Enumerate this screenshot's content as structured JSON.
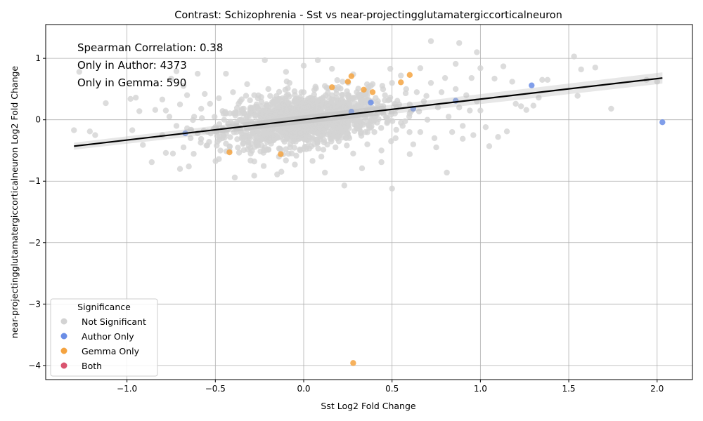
{
  "chart_data": {
    "type": "scatter",
    "title": "Contrast: Schizophrenia - Sst vs near-projectingglutamatergiccorticalneuron",
    "xlabel": "Sst Log2 Fold Change",
    "ylabel": "near-projectingglutamatergiccorticalneuron Log2 Fold Change",
    "xlim": [
      -1.46,
      2.2
    ],
    "ylim": [
      -4.23,
      1.55
    ],
    "xticks": [
      -1.0,
      -0.5,
      0.0,
      0.5,
      1.0,
      1.5,
      2.0
    ],
    "xtick_labels": [
      "−1.0",
      "−0.5",
      "0.0",
      "0.5",
      "1.0",
      "1.5",
      "2.0"
    ],
    "yticks": [
      -4,
      -3,
      -2,
      -1,
      0,
      1
    ],
    "ytick_labels": [
      "−4",
      "−3",
      "−2",
      "−1",
      "0",
      "1"
    ],
    "grid": true,
    "annotations": [
      "Spearman Correlation: 0.38",
      "Only in Author: 4373",
      "Only in Gemma: 590"
    ],
    "legend": {
      "title": "Significance",
      "placement": "lower-left",
      "entries": [
        {
          "label": "Not Significant",
          "color": "#d3d3d3"
        },
        {
          "label": "Author Only",
          "color": "#6a8de6"
        },
        {
          "label": "Gemma Only",
          "color": "#f4a340"
        },
        {
          "label": "Both",
          "color": "#d9546f"
        }
      ]
    },
    "regression_line": {
      "x": [
        -1.3,
        2.03
      ],
      "y": [
        -0.43,
        0.68
      ],
      "color": "#000000"
    },
    "series": [
      {
        "name": "Not Significant",
        "color": "#d3d3d3",
        "points": [
          [
            -1.3,
            -0.17
          ],
          [
            -1.27,
            0.78
          ],
          [
            -1.21,
            -0.19
          ],
          [
            -1.18,
            -0.25
          ],
          [
            -1.12,
            0.27
          ],
          [
            -0.98,
            0.34
          ],
          [
            -0.97,
            -0.17
          ],
          [
            -0.95,
            0.36
          ],
          [
            -0.93,
            0.14
          ],
          [
            -0.91,
            -0.41
          ],
          [
            -0.86,
            -0.69
          ],
          [
            -0.84,
            0.16
          ],
          [
            -0.8,
            0.33
          ],
          [
            -0.78,
            -0.54
          ],
          [
            -0.75,
            0.67
          ],
          [
            -0.72,
            0.79
          ],
          [
            -0.7,
            -0.8
          ],
          [
            -0.65,
            -0.76
          ],
          [
            -0.6,
            0.75
          ],
          [
            -0.56,
            0.42
          ],
          [
            -0.48,
            -0.64
          ],
          [
            -0.44,
            0.75
          ],
          [
            -0.39,
            -0.94
          ],
          [
            -0.32,
            0.58
          ],
          [
            -0.28,
            -0.91
          ],
          [
            -0.22,
            0.97
          ],
          [
            -0.15,
            -0.89
          ],
          [
            -0.1,
            0.78
          ],
          [
            -0.05,
            -0.73
          ],
          [
            0.0,
            0.88
          ],
          [
            0.05,
            -0.67
          ],
          [
            0.08,
            0.97
          ],
          [
            0.12,
            -0.86
          ],
          [
            0.16,
            0.83
          ],
          [
            0.23,
            -1.07
          ],
          [
            0.28,
            0.74
          ],
          [
            0.33,
            -0.79
          ],
          [
            0.39,
            0.58
          ],
          [
            0.44,
            -0.69
          ],
          [
            0.49,
            0.83
          ],
          [
            0.5,
            -1.12
          ],
          [
            0.55,
            0.72
          ],
          [
            0.6,
            -0.56
          ],
          [
            0.66,
            0.84
          ],
          [
            0.72,
            1.28
          ],
          [
            0.75,
            -0.45
          ],
          [
            0.8,
            0.68
          ],
          [
            0.81,
            -0.86
          ],
          [
            0.86,
            0.91
          ],
          [
            0.88,
            1.25
          ],
          [
            0.9,
            -0.31
          ],
          [
            0.95,
            0.68
          ],
          [
            0.98,
            1.1
          ],
          [
            1.0,
            0.84
          ],
          [
            1.03,
            -0.12
          ],
          [
            1.05,
            -0.43
          ],
          [
            1.08,
            0.67
          ],
          [
            1.1,
            -0.28
          ],
          [
            1.13,
            0.87
          ],
          [
            1.15,
            -0.19
          ],
          [
            1.18,
            0.62
          ],
          [
            1.2,
            0.26
          ],
          [
            1.23,
            0.22
          ],
          [
            1.26,
            0.16
          ],
          [
            1.3,
            0.23
          ],
          [
            1.33,
            0.36
          ],
          [
            1.35,
            0.65
          ],
          [
            1.38,
            0.65
          ],
          [
            1.53,
            1.03
          ],
          [
            1.55,
            0.39
          ],
          [
            1.57,
            0.82
          ],
          [
            1.65,
            0.85
          ],
          [
            1.74,
            0.18
          ],
          [
            1.94,
            0.65
          ],
          [
            2.0,
            0.62
          ],
          [
            -0.62,
            0.05
          ],
          [
            -0.6,
            -0.22
          ],
          [
            -0.58,
            0.18
          ],
          [
            -0.55,
            -0.42
          ],
          [
            -0.53,
            0.26
          ],
          [
            -0.5,
            -0.12
          ],
          [
            -0.48,
            0.35
          ],
          [
            -0.46,
            -0.3
          ],
          [
            -0.44,
            0.1
          ],
          [
            -0.42,
            -0.5
          ],
          [
            -0.4,
            0.45
          ],
          [
            -0.38,
            -0.2
          ],
          [
            -0.36,
            0.3
          ],
          [
            -0.34,
            -0.38
          ],
          [
            -0.32,
            0.05
          ],
          [
            -0.3,
            -0.55
          ],
          [
            -0.28,
            0.4
          ],
          [
            -0.26,
            -0.1
          ],
          [
            -0.24,
            0.22
          ],
          [
            -0.22,
            -0.45
          ],
          [
            -0.2,
            0.5
          ],
          [
            -0.18,
            -0.25
          ],
          [
            -0.16,
            0.12
          ],
          [
            -0.14,
            -0.6
          ],
          [
            -0.12,
            0.35
          ],
          [
            -0.1,
            -0.05
          ],
          [
            -0.08,
            0.6
          ],
          [
            -0.06,
            -0.35
          ],
          [
            -0.04,
            0.2
          ],
          [
            -0.02,
            -0.5
          ],
          [
            0.0,
            0.45
          ],
          [
            0.02,
            -0.15
          ],
          [
            0.04,
            0.3
          ],
          [
            0.06,
            -0.4
          ],
          [
            0.08,
            0.15
          ],
          [
            0.1,
            -0.6
          ],
          [
            0.12,
            0.55
          ],
          [
            0.14,
            -0.2
          ],
          [
            0.16,
            0.4
          ],
          [
            0.18,
            -0.45
          ],
          [
            0.2,
            0.05
          ],
          [
            0.22,
            0.62
          ],
          [
            0.24,
            -0.3
          ],
          [
            0.26,
            0.25
          ],
          [
            0.28,
            -0.55
          ],
          [
            0.3,
            0.45
          ],
          [
            0.32,
            -0.1
          ],
          [
            0.34,
            0.3
          ],
          [
            0.36,
            -0.4
          ],
          [
            0.38,
            0.55
          ],
          [
            0.4,
            -0.2
          ],
          [
            0.42,
            0.2
          ],
          [
            0.44,
            -0.5
          ],
          [
            0.46,
            0.4
          ],
          [
            0.48,
            0.0
          ],
          [
            0.5,
            0.6
          ],
          [
            0.52,
            -0.3
          ],
          [
            0.54,
            0.25
          ],
          [
            0.56,
            -0.1
          ],
          [
            0.58,
            0.5
          ],
          [
            0.6,
            0.1
          ],
          [
            0.62,
            -0.4
          ],
          [
            0.64,
            0.45
          ],
          [
            0.66,
            -0.2
          ],
          [
            0.68,
            0.3
          ],
          [
            0.7,
            0.0
          ],
          [
            0.72,
            0.6
          ],
          [
            0.74,
            -0.3
          ],
          [
            0.76,
            0.2
          ],
          [
            0.78,
            0.45
          ],
          [
            -0.72,
            -0.1
          ],
          [
            -0.7,
            0.25
          ],
          [
            -0.68,
            -0.45
          ],
          [
            -0.66,
            0.4
          ],
          [
            -0.64,
            -0.3
          ],
          [
            -0.76,
            0.05
          ],
          [
            -0.8,
            -0.25
          ],
          [
            -0.78,
            0.15
          ],
          [
            -0.74,
            -0.55
          ],
          [
            -0.68,
            0.55
          ],
          [
            0.82,
            0.05
          ],
          [
            0.84,
            -0.2
          ],
          [
            0.86,
            0.5
          ],
          [
            0.88,
            0.2
          ],
          [
            0.9,
            -0.1
          ],
          [
            0.92,
            0.4
          ],
          [
            0.94,
            0.15
          ],
          [
            0.96,
            -0.25
          ],
          [
            0.98,
            0.3
          ],
          [
            1.0,
            0.15
          ],
          [
            -0.35,
            0.15
          ],
          [
            -0.25,
            -0.3
          ],
          [
            -0.15,
            0.25
          ],
          [
            -0.05,
            -0.2
          ],
          [
            0.05,
            0.1
          ],
          [
            0.15,
            -0.25
          ],
          [
            0.25,
            0.15
          ],
          [
            0.35,
            -0.2
          ],
          [
            0.45,
            0.1
          ],
          [
            0.55,
            -0.05
          ],
          [
            -0.45,
            0.0
          ],
          [
            -0.3,
            0.1
          ],
          [
            -0.2,
            -0.05
          ],
          [
            -0.1,
            0.15
          ],
          [
            0.0,
            -0.1
          ],
          [
            0.1,
            0.2
          ],
          [
            0.2,
            -0.05
          ],
          [
            0.3,
            0.1
          ],
          [
            0.4,
            0.0
          ],
          [
            0.6,
            0.25
          ]
        ]
      },
      {
        "name": "Author Only",
        "color": "#6a8de6",
        "points": [
          [
            -0.67,
            -0.22
          ],
          [
            0.27,
            0.13
          ],
          [
            0.38,
            0.28
          ],
          [
            0.62,
            0.18
          ],
          [
            0.86,
            0.31
          ],
          [
            1.29,
            0.56
          ],
          [
            2.03,
            -0.04
          ]
        ]
      },
      {
        "name": "Gemma Only",
        "color": "#f4a340",
        "points": [
          [
            -0.42,
            -0.53
          ],
          [
            -0.13,
            -0.56
          ],
          [
            0.16,
            0.53
          ],
          [
            0.25,
            0.62
          ],
          [
            0.27,
            0.71
          ],
          [
            0.34,
            0.49
          ],
          [
            0.39,
            0.45
          ],
          [
            0.55,
            0.61
          ],
          [
            0.6,
            0.73
          ],
          [
            0.28,
            -3.96
          ]
        ]
      },
      {
        "name": "Both",
        "color": "#d9546f",
        "points": []
      }
    ]
  }
}
